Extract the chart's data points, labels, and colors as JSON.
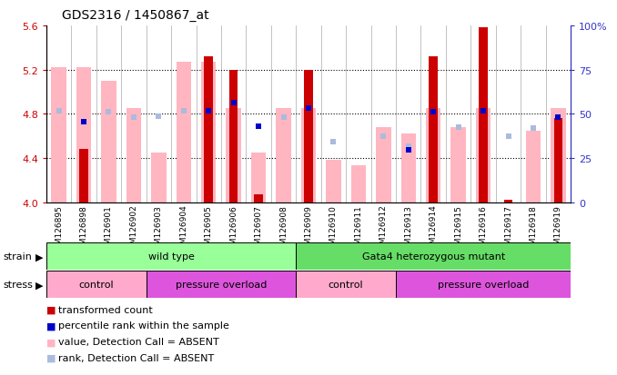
{
  "title": "GDS2316 / 1450867_at",
  "samples": [
    "GSM126895",
    "GSM126898",
    "GSM126901",
    "GSM126902",
    "GSM126903",
    "GSM126904",
    "GSM126905",
    "GSM126906",
    "GSM126907",
    "GSM126908",
    "GSM126909",
    "GSM126910",
    "GSM126911",
    "GSM126912",
    "GSM126913",
    "GSM126914",
    "GSM126915",
    "GSM126916",
    "GSM126917",
    "GSM126918",
    "GSM126919"
  ],
  "red_bars": [
    0,
    4.48,
    0,
    0,
    0,
    0,
    5.32,
    5.2,
    4.07,
    0,
    5.2,
    0,
    0,
    0,
    0,
    5.32,
    0,
    5.58,
    4.02,
    0,
    4.76
  ],
  "pink_bars": [
    5.22,
    5.22,
    5.1,
    4.85,
    4.45,
    5.27,
    5.27,
    4.85,
    4.45,
    4.85,
    4.85,
    4.38,
    4.33,
    4.68,
    4.62,
    4.85,
    4.68,
    4.85,
    4.0,
    4.65,
    4.85
  ],
  "blue_squares": [
    0,
    4.73,
    0,
    0,
    0,
    0,
    4.83,
    4.9,
    4.69,
    0,
    4.85,
    0,
    0,
    0,
    4.47,
    4.82,
    0,
    4.83,
    0,
    0,
    4.77
  ],
  "lightblue_squares": [
    4.83,
    0,
    4.82,
    4.77,
    4.78,
    4.83,
    0,
    0,
    0,
    4.77,
    0,
    4.55,
    0,
    4.6,
    4.51,
    0,
    4.68,
    0,
    4.6,
    4.67,
    0
  ],
  "ylim_left": [
    4.0,
    5.6
  ],
  "ylim_right": [
    0,
    100
  ],
  "yticks_left": [
    4.0,
    4.4,
    4.8,
    5.2,
    5.6
  ],
  "yticks_right_vals": [
    0,
    25,
    50,
    75,
    100
  ],
  "yticks_right_labels": [
    "0",
    "25",
    "50",
    "75",
    "100%"
  ],
  "ybase": 4.0,
  "left_axis_color": "#CC0000",
  "right_axis_color": "#3333CC",
  "bg_color": "#FFFFFF",
  "tick_area_color": "#CCCCCC",
  "strain_groups": [
    {
      "label": "wild type",
      "start": 0,
      "end": 10,
      "color": "#99FF99"
    },
    {
      "label": "Gata4 heterozygous mutant",
      "start": 10,
      "end": 21,
      "color": "#66DD66"
    }
  ],
  "stress_groups": [
    {
      "label": "control",
      "start": 0,
      "end": 4,
      "color": "#FFAACC"
    },
    {
      "label": "pressure overload",
      "start": 4,
      "end": 10,
      "color": "#DD55DD"
    },
    {
      "label": "control",
      "start": 10,
      "end": 14,
      "color": "#FFAACC"
    },
    {
      "label": "pressure overload",
      "start": 14,
      "end": 21,
      "color": "#DD55DD"
    }
  ],
  "legend_labels": [
    "transformed count",
    "percentile rank within the sample",
    "value, Detection Call = ABSENT",
    "rank, Detection Call = ABSENT"
  ],
  "legend_colors": [
    "#CC0000",
    "#0000CC",
    "#FFB6C1",
    "#AABBDD"
  ]
}
